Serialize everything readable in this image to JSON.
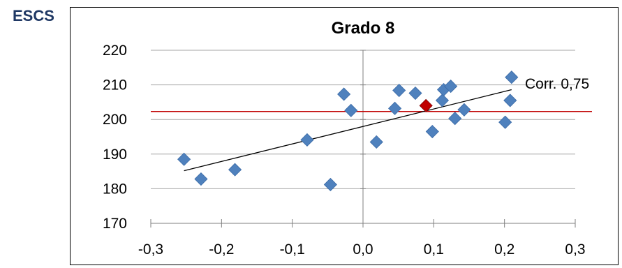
{
  "outer_label": "ESCS",
  "chart_data": {
    "type": "scatter",
    "title": "Grado 8",
    "xlabel": "",
    "ylabel": "",
    "xlim": [
      -0.3,
      0.3
    ],
    "ylim": [
      170,
      220
    ],
    "x_ticks": [
      -0.3,
      -0.2,
      -0.1,
      0.0,
      0.1,
      0.2,
      0.3
    ],
    "x_tick_labels": [
      "-0,3",
      "-0,2",
      "-0,1",
      "0,0",
      "0,1",
      "0,2",
      "0,3"
    ],
    "y_ticks": [
      170,
      180,
      190,
      200,
      210,
      220
    ],
    "y_tick_labels": [
      "170",
      "180",
      "190",
      "200",
      "210",
      "220"
    ],
    "grid": "horizontal",
    "series": [
      {
        "color": "#4f81bd",
        "marker": "diamond",
        "points": [
          {
            "x": -0.253,
            "y": 188.5
          },
          {
            "x": -0.229,
            "y": 182.8
          },
          {
            "x": -0.181,
            "y": 185.5
          },
          {
            "x": -0.079,
            "y": 194.1
          },
          {
            "x": -0.046,
            "y": 181.2
          },
          {
            "x": -0.027,
            "y": 207.3
          },
          {
            "x": -0.017,
            "y": 202.6
          },
          {
            "x": 0.019,
            "y": 193.5
          },
          {
            "x": 0.045,
            "y": 203.2
          },
          {
            "x": 0.051,
            "y": 208.4
          },
          {
            "x": 0.074,
            "y": 207.6
          },
          {
            "x": 0.098,
            "y": 196.5
          },
          {
            "x": 0.112,
            "y": 205.5
          },
          {
            "x": 0.114,
            "y": 208.6
          },
          {
            "x": 0.124,
            "y": 209.6
          },
          {
            "x": 0.13,
            "y": 200.3
          },
          {
            "x": 0.143,
            "y": 202.8
          },
          {
            "x": 0.201,
            "y": 199.2
          },
          {
            "x": 0.208,
            "y": 205.5
          },
          {
            "x": 0.21,
            "y": 212.2
          }
        ]
      },
      {
        "color": "#c00000",
        "marker": "diamond",
        "points": [
          {
            "x": 0.089,
            "y": 204.0
          }
        ]
      }
    ],
    "trendline": {
      "x": [
        -0.253,
        0.21
      ],
      "y": [
        185.2,
        208.6
      ],
      "color": "#000000"
    },
    "reference_line": {
      "y": 202.3,
      "color": "#c00000"
    },
    "annotation": "Corr. 0,75"
  }
}
